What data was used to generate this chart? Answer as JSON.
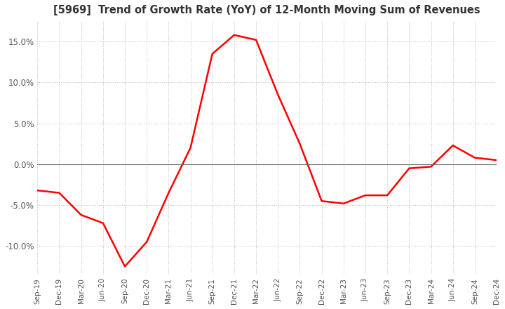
{
  "title": "[5969]  Trend of Growth Rate (YoY) of 12-Month Moving Sum of Revenues",
  "title_fontsize": 10.5,
  "line_color": "#ff0000",
  "background_color": "#ffffff",
  "grid_color": "#bbbbbb",
  "x_labels": [
    "Sep-19",
    "Dec-19",
    "Mar-20",
    "Jun-20",
    "Sep-20",
    "Dec-20",
    "Mar-21",
    "Jun-21",
    "Sep-21",
    "Dec-21",
    "Mar-22",
    "Jun-22",
    "Sep-22",
    "Dec-22",
    "Mar-23",
    "Jun-23",
    "Sep-23",
    "Dec-23",
    "Mar-24",
    "Jun-24",
    "Sep-24",
    "Dec-24"
  ],
  "y_values": [
    -3.2,
    -3.5,
    -6.2,
    -7.2,
    -12.5,
    -9.5,
    -3.5,
    2.0,
    13.5,
    15.8,
    15.2,
    8.5,
    2.5,
    -4.5,
    -4.8,
    -3.8,
    -3.8,
    -0.5,
    -0.3,
    2.3,
    0.8,
    0.5
  ],
  "ylim": [
    -13.5,
    17.5
  ],
  "yticks": [
    -10.0,
    -5.0,
    0.0,
    5.0,
    10.0,
    15.0
  ],
  "tick_color": "#555555",
  "tick_fontsize": 8.5,
  "xtick_fontsize": 7.5,
  "zero_line_color": "#666666",
  "linewidth": 1.8
}
